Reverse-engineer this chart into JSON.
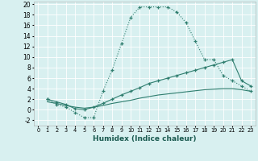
{
  "xlabel": "Humidex (Indice chaleur)",
  "bg_color": "#d8f0f0",
  "grid_color": "#ffffff",
  "line_color": "#2e7d6e",
  "xlim": [
    -0.5,
    23.5
  ],
  "ylim": [
    -3,
    20.5
  ],
  "xticks": [
    0,
    1,
    2,
    3,
    4,
    5,
    6,
    7,
    8,
    9,
    10,
    11,
    12,
    13,
    14,
    15,
    16,
    17,
    18,
    19,
    20,
    21,
    22,
    23
  ],
  "yticks": [
    -2,
    0,
    2,
    4,
    6,
    8,
    10,
    12,
    14,
    16,
    18,
    20
  ],
  "s1_x": [
    1,
    2,
    3,
    4,
    5,
    6,
    7,
    8,
    9,
    10,
    11,
    12,
    13,
    14,
    15,
    16,
    17,
    18,
    19,
    20,
    21,
    22,
    23
  ],
  "s1_y": [
    2.0,
    1.0,
    0.5,
    -0.5,
    -1.5,
    -1.5,
    3.5,
    7.5,
    12.5,
    17.5,
    19.5,
    19.5,
    19.5,
    19.5,
    18.5,
    16.5,
    13.0,
    9.5,
    9.5,
    6.5,
    5.5,
    4.5,
    3.5
  ],
  "s2_x": [
    1,
    2,
    3,
    4,
    5,
    6,
    7,
    8,
    9,
    10,
    11,
    12,
    13,
    14,
    15,
    16,
    17,
    18,
    19,
    20,
    21,
    22,
    23
  ],
  "s2_y": [
    2.0,
    1.5,
    1.0,
    0.2,
    0.0,
    0.5,
    1.2,
    2.0,
    2.8,
    3.5,
    4.2,
    5.0,
    5.5,
    6.0,
    6.5,
    7.0,
    7.5,
    8.0,
    8.5,
    9.0,
    9.5,
    5.5,
    4.5
  ],
  "s3_x": [
    1,
    2,
    3,
    4,
    5,
    6,
    7,
    8,
    9,
    10,
    11,
    12,
    13,
    14,
    15,
    16,
    17,
    18,
    19,
    20,
    21,
    22,
    23
  ],
  "s3_y": [
    1.5,
    1.2,
    0.8,
    0.5,
    0.3,
    0.5,
    0.8,
    1.2,
    1.5,
    1.8,
    2.2,
    2.5,
    2.8,
    3.0,
    3.2,
    3.4,
    3.6,
    3.8,
    3.9,
    4.0,
    4.0,
    3.8,
    3.5
  ]
}
